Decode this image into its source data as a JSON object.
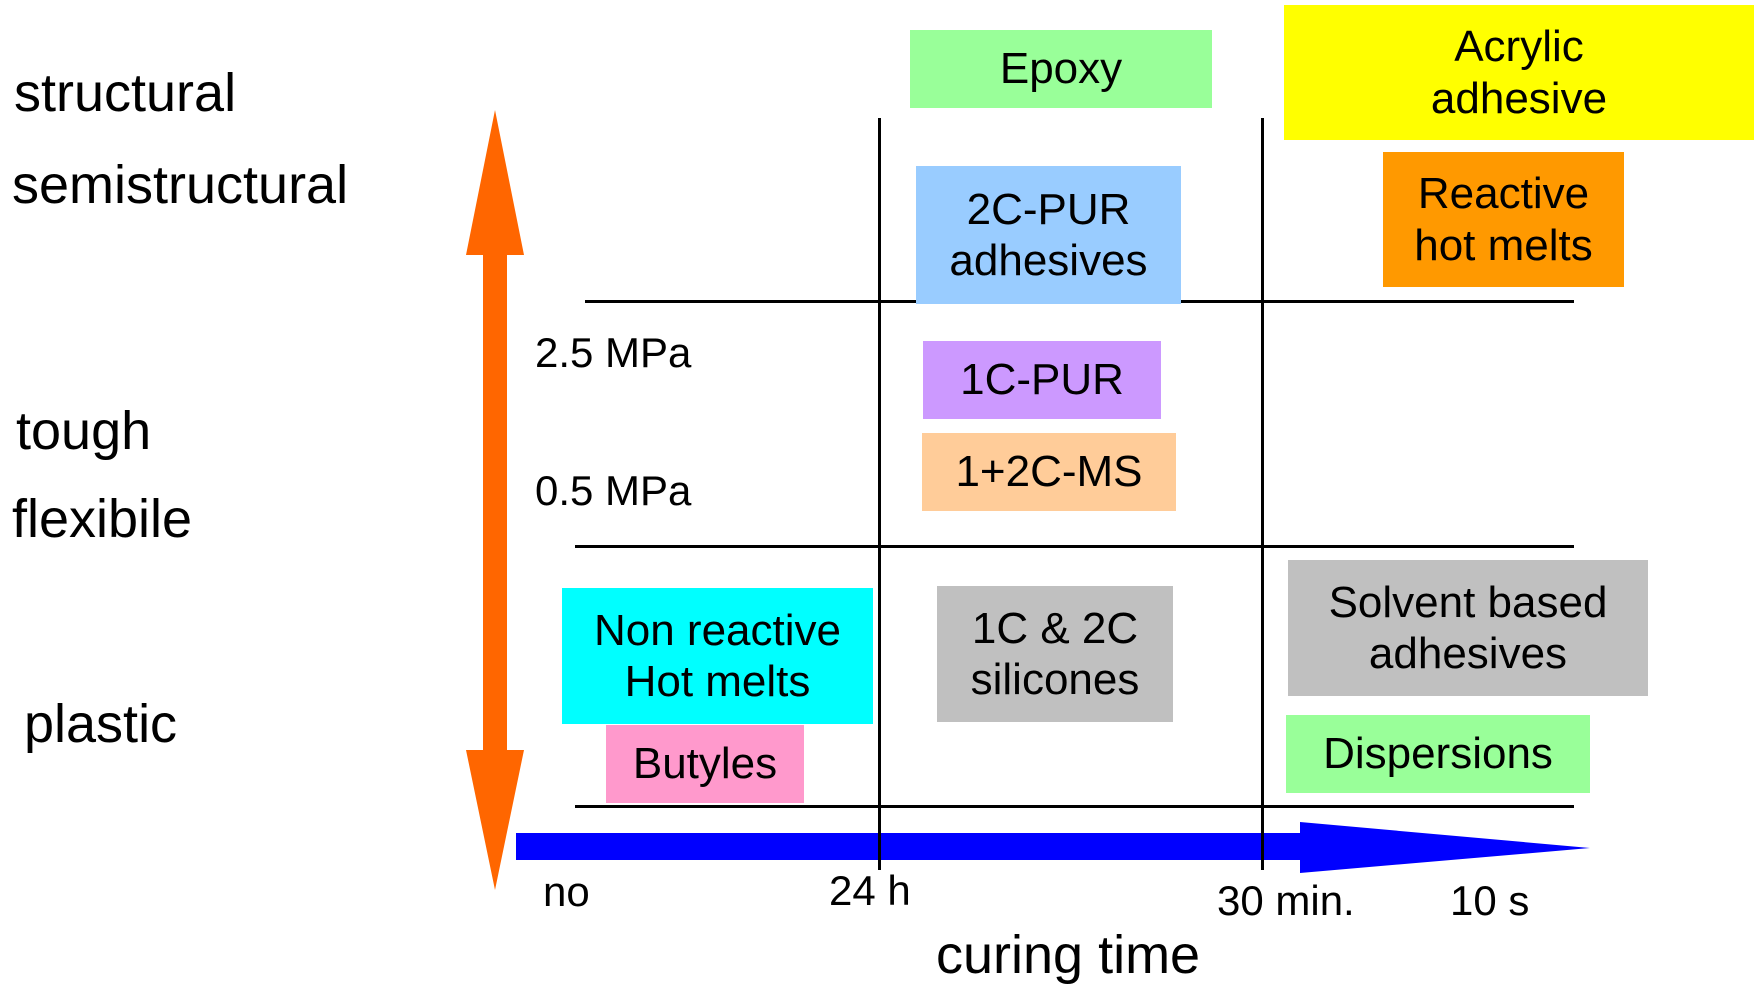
{
  "strength_levels": {
    "structural": "structural",
    "semistructural": "semistructural",
    "tough": "tough",
    "flexibile": "flexibile",
    "plastic": "plastic"
  },
  "thresholds": {
    "high": "2.5 MPa",
    "low": "0.5 MPa"
  },
  "curing_ticks": {
    "no": "no",
    "h24": "24 h",
    "min30": "30 min.",
    "s10": "10 s"
  },
  "x_axis_label": "curing time",
  "adhesives": {
    "epoxy": {
      "label": "Epoxy",
      "color": "#99ff99"
    },
    "acrylic": {
      "label": "Acrylic\nadhesive",
      "color": "#ffff00"
    },
    "pur2c": {
      "label": "2C-PUR\nadhesives",
      "color": "#99ccff"
    },
    "reactive_hot_melts": {
      "label": "Reactive\nhot melts",
      "color": "#ff9900"
    },
    "pur1c": {
      "label": "1C-PUR",
      "color": "#cc99ff"
    },
    "ms": {
      "label": "1+2C-MS",
      "color": "#ffcc99"
    },
    "non_reactive_hot_melts": {
      "label": "Non reactive\nHot melts",
      "color": "#00ffff"
    },
    "butyles": {
      "label": "Butyles",
      "color": "#ff99cc"
    },
    "silicones": {
      "label": "1C & 2C\nsilicones",
      "color": "#c0c0c0"
    },
    "solvent_based": {
      "label": "Solvent based\nadhesives",
      "color": "#c0c0c0"
    },
    "dispersions": {
      "label": "Dispersions",
      "color": "#99ff99"
    }
  },
  "arrows": {
    "vertical_color": "#ff6600",
    "horizontal_color": "#0000ff"
  }
}
